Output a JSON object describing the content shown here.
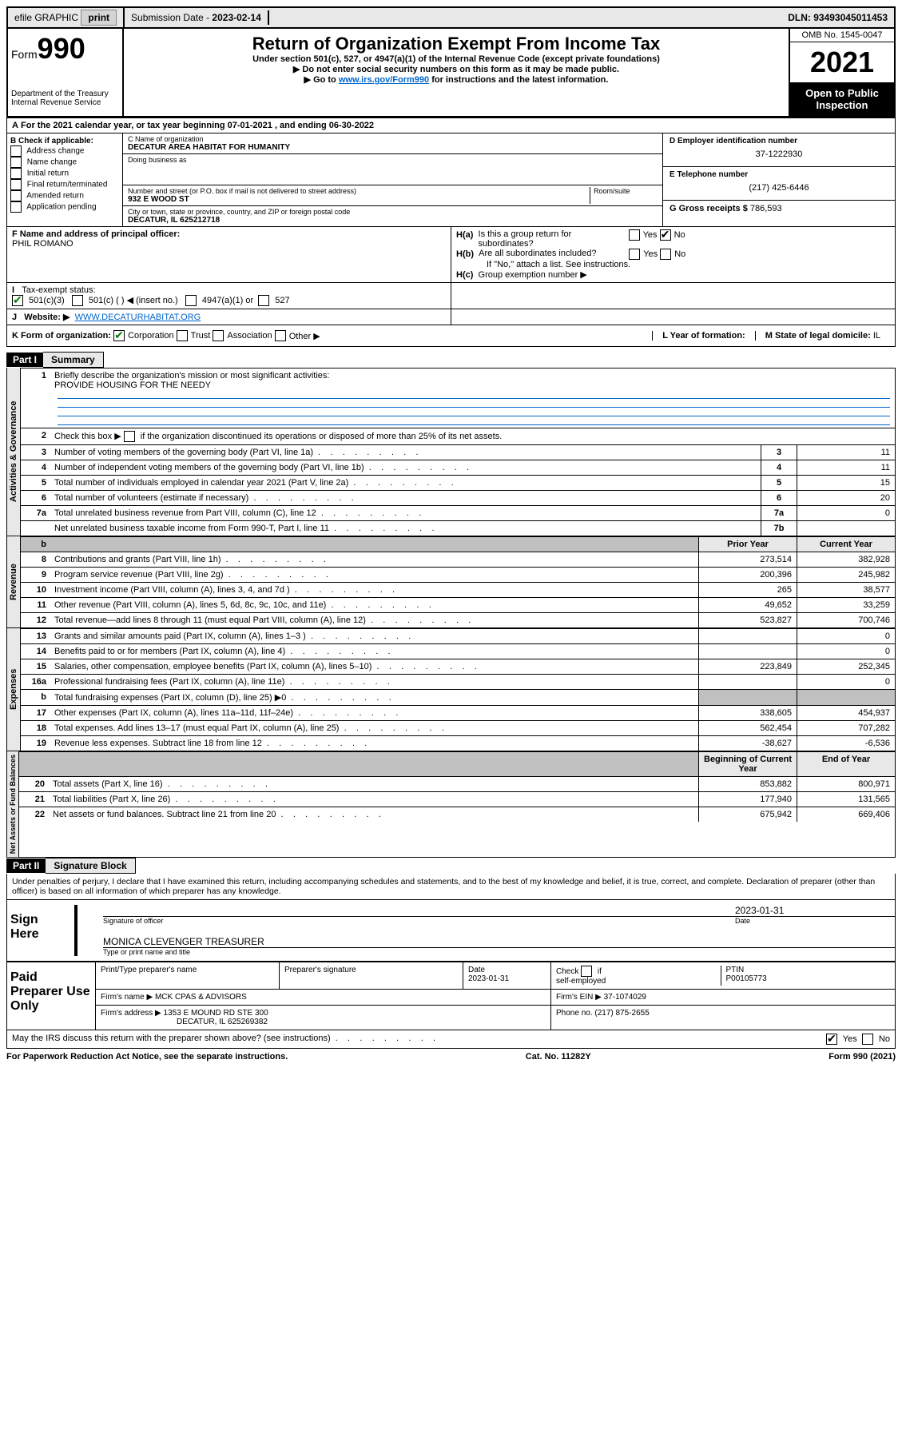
{
  "topbar": {
    "efile": "efile GRAPHIC",
    "print": "print",
    "sub_label": "Submission Date - ",
    "sub_date": "2023-02-14",
    "dln": "DLN: 93493045011453"
  },
  "header": {
    "form_word": "Form",
    "form_num": "990",
    "dept": "Department of the Treasury\nInternal Revenue Service",
    "title": "Return of Organization Exempt From Income Tax",
    "sub1": "Under section 501(c), 527, or 4947(a)(1) of the Internal Revenue Code (except private foundations)",
    "sub2": "Do not enter social security numbers on this form as it may be made public.",
    "sub3_a": "Go to ",
    "sub3_link": "www.irs.gov/Form990",
    "sub3_b": " for instructions and the latest information.",
    "omb": "OMB No. 1545-0047",
    "year": "2021",
    "pub": "Open to Public Inspection"
  },
  "A": {
    "text": "For the 2021 calendar year, or tax year beginning 07-01-2021   , and ending 06-30-2022"
  },
  "B": {
    "label": "B Check if applicable:",
    "opts": [
      "Address change",
      "Name change",
      "Initial return",
      "Final return/terminated",
      "Amended return",
      "Application pending"
    ]
  },
  "C": {
    "name_lab": "C Name of organization",
    "name": "DECATUR AREA HABITAT FOR HUMANITY",
    "dba_lab": "Doing business as",
    "dba": "",
    "street_lab": "Number and street (or P.O. box if mail is not delivered to street address)",
    "room_lab": "Room/suite",
    "street": "932 E WOOD ST",
    "city_lab": "City or town, state or province, country, and ZIP or foreign postal code",
    "city": "DECATUR, IL  625212718"
  },
  "D": {
    "lab": "D Employer identification number",
    "val": "37-1222930"
  },
  "E": {
    "lab": "E Telephone number",
    "val": "(217) 425-6446"
  },
  "G": {
    "lab": "G Gross receipts $ ",
    "val": "786,593"
  },
  "F": {
    "lab": "F  Name and address of principal officer:",
    "val": "PHIL ROMANO"
  },
  "H": {
    "a": "Is this a group return for subordinates?",
    "b": "Are all subordinates included?",
    "b_note": "If \"No,\" attach a list. See instructions.",
    "c": "Group exemption number ▶"
  },
  "I": {
    "lab": "Tax-exempt status:"
  },
  "J": {
    "lab": "Website: ▶",
    "val": "WWW.DECATURHABITAT.ORG"
  },
  "K": {
    "lab": "K Form of organization:"
  },
  "L": {
    "lab": "L Year of formation:",
    "val": ""
  },
  "M": {
    "lab": "M State of legal domicile: ",
    "val": "IL"
  },
  "part1": {
    "hdr": "Part I",
    "title": "Summary",
    "l1_lab": "Briefly describe the organization's mission or most significant activities:",
    "l1_val": "PROVIDE HOUSING FOR THE NEEDY",
    "l2": "Check this box ▶        if the organization discontinued its operations or disposed of more than 25% of its net assets.",
    "rows_ag": [
      {
        "n": "3",
        "t": "Number of voting members of the governing body (Part VI, line 1a)",
        "rn": "3",
        "v": "11"
      },
      {
        "n": "4",
        "t": "Number of independent voting members of the governing body (Part VI, line 1b)",
        "rn": "4",
        "v": "11"
      },
      {
        "n": "5",
        "t": "Total number of individuals employed in calendar year 2021 (Part V, line 2a)",
        "rn": "5",
        "v": "15"
      },
      {
        "n": "6",
        "t": "Total number of volunteers (estimate if necessary)",
        "rn": "6",
        "v": "20"
      },
      {
        "n": "7a",
        "t": "Total unrelated business revenue from Part VIII, column (C), line 12",
        "rn": "7a",
        "v": "0"
      },
      {
        "n": "",
        "t": "Net unrelated business taxable income from Form 990-T, Part I, line 11",
        "rn": "7b",
        "v": ""
      }
    ],
    "col_py": "Prior Year",
    "col_cy": "Current Year",
    "rows_rev": [
      {
        "n": "8",
        "t": "Contributions and grants (Part VIII, line 1h)",
        "py": "273,514",
        "cy": "382,928"
      },
      {
        "n": "9",
        "t": "Program service revenue (Part VIII, line 2g)",
        "py": "200,396",
        "cy": "245,982"
      },
      {
        "n": "10",
        "t": "Investment income (Part VIII, column (A), lines 3, 4, and 7d )",
        "py": "265",
        "cy": "38,577"
      },
      {
        "n": "11",
        "t": "Other revenue (Part VIII, column (A), lines 5, 6d, 8c, 9c, 10c, and 11e)",
        "py": "49,652",
        "cy": "33,259"
      },
      {
        "n": "12",
        "t": "Total revenue—add lines 8 through 11 (must equal Part VIII, column (A), line 12)",
        "py": "523,827",
        "cy": "700,746"
      }
    ],
    "rows_exp": [
      {
        "n": "13",
        "t": "Grants and similar amounts paid (Part IX, column (A), lines 1–3 )",
        "py": "",
        "cy": "0"
      },
      {
        "n": "14",
        "t": "Benefits paid to or for members (Part IX, column (A), line 4)",
        "py": "",
        "cy": "0"
      },
      {
        "n": "15",
        "t": "Salaries, other compensation, employee benefits (Part IX, column (A), lines 5–10)",
        "py": "223,849",
        "cy": "252,345"
      },
      {
        "n": "16a",
        "t": "Professional fundraising fees (Part IX, column (A), line 11e)",
        "py": "",
        "cy": "0"
      },
      {
        "n": "b",
        "t": "Total fundraising expenses (Part IX, column (D), line 25) ▶0",
        "py": "GRAY",
        "cy": "GRAY"
      },
      {
        "n": "17",
        "t": "Other expenses (Part IX, column (A), lines 11a–11d, 11f–24e)",
        "py": "338,605",
        "cy": "454,937"
      },
      {
        "n": "18",
        "t": "Total expenses. Add lines 13–17 (must equal Part IX, column (A), line 25)",
        "py": "562,454",
        "cy": "707,282"
      },
      {
        "n": "19",
        "t": "Revenue less expenses. Subtract line 18 from line 12",
        "py": "-38,627",
        "cy": "-6,536"
      }
    ],
    "col_boy": "Beginning of Current Year",
    "col_eoy": "End of Year",
    "rows_na": [
      {
        "n": "20",
        "t": "Total assets (Part X, line 16)",
        "py": "853,882",
        "cy": "800,971"
      },
      {
        "n": "21",
        "t": "Total liabilities (Part X, line 26)",
        "py": "177,940",
        "cy": "131,565"
      },
      {
        "n": "22",
        "t": "Net assets or fund balances. Subtract line 21 from line 20",
        "py": "675,942",
        "cy": "669,406"
      }
    ]
  },
  "vlabels": {
    "ag": "Activities & Governance",
    "rev": "Revenue",
    "exp": "Expenses",
    "na": "Net Assets or Fund Balances"
  },
  "part2": {
    "hdr": "Part II",
    "title": "Signature Block",
    "decl": "Under penalties of perjury, I declare that I have examined this return, including accompanying schedules and statements, and to the best of my knowledge and belief, it is true, correct, and complete. Declaration of preparer (other than officer) is based on all information of which preparer has any knowledge.",
    "sign_here": "Sign Here",
    "sig_of_officer": "Signature of officer",
    "date_lab": "Date",
    "date_val": "2023-01-31",
    "officer": "MONICA CLEVENGER TREASURER",
    "officer_sub": "Type or print name and title",
    "paid": "Paid Preparer Use Only",
    "p_name_lab": "Print/Type preparer's name",
    "p_sig_lab": "Preparer's signature",
    "p_date_lab": "Date",
    "p_date": "2023-01-31",
    "p_se": "Check          if self-employed",
    "ptin_lab": "PTIN",
    "ptin": "P00105773",
    "firm_name_lab": "Firm's name    ▶ ",
    "firm_name": "MCK CPAS & ADVISORS",
    "firm_ein_lab": "Firm's EIN ▶ ",
    "firm_ein": "37-1074029",
    "firm_addr_lab": "Firm's address ▶ ",
    "firm_addr1": "1353 E MOUND RD STE 300",
    "firm_addr2": "DECATUR, IL  625269382",
    "phone_lab": "Phone no. ",
    "phone": "(217) 875-2655",
    "may_irs": "May the IRS discuss this return with the preparer shown above? (see instructions)"
  },
  "footer": {
    "l": "For Paperwork Reduction Act Notice, see the separate instructions.",
    "m": "Cat. No. 11282Y",
    "r": "Form 990 (2021)"
  }
}
